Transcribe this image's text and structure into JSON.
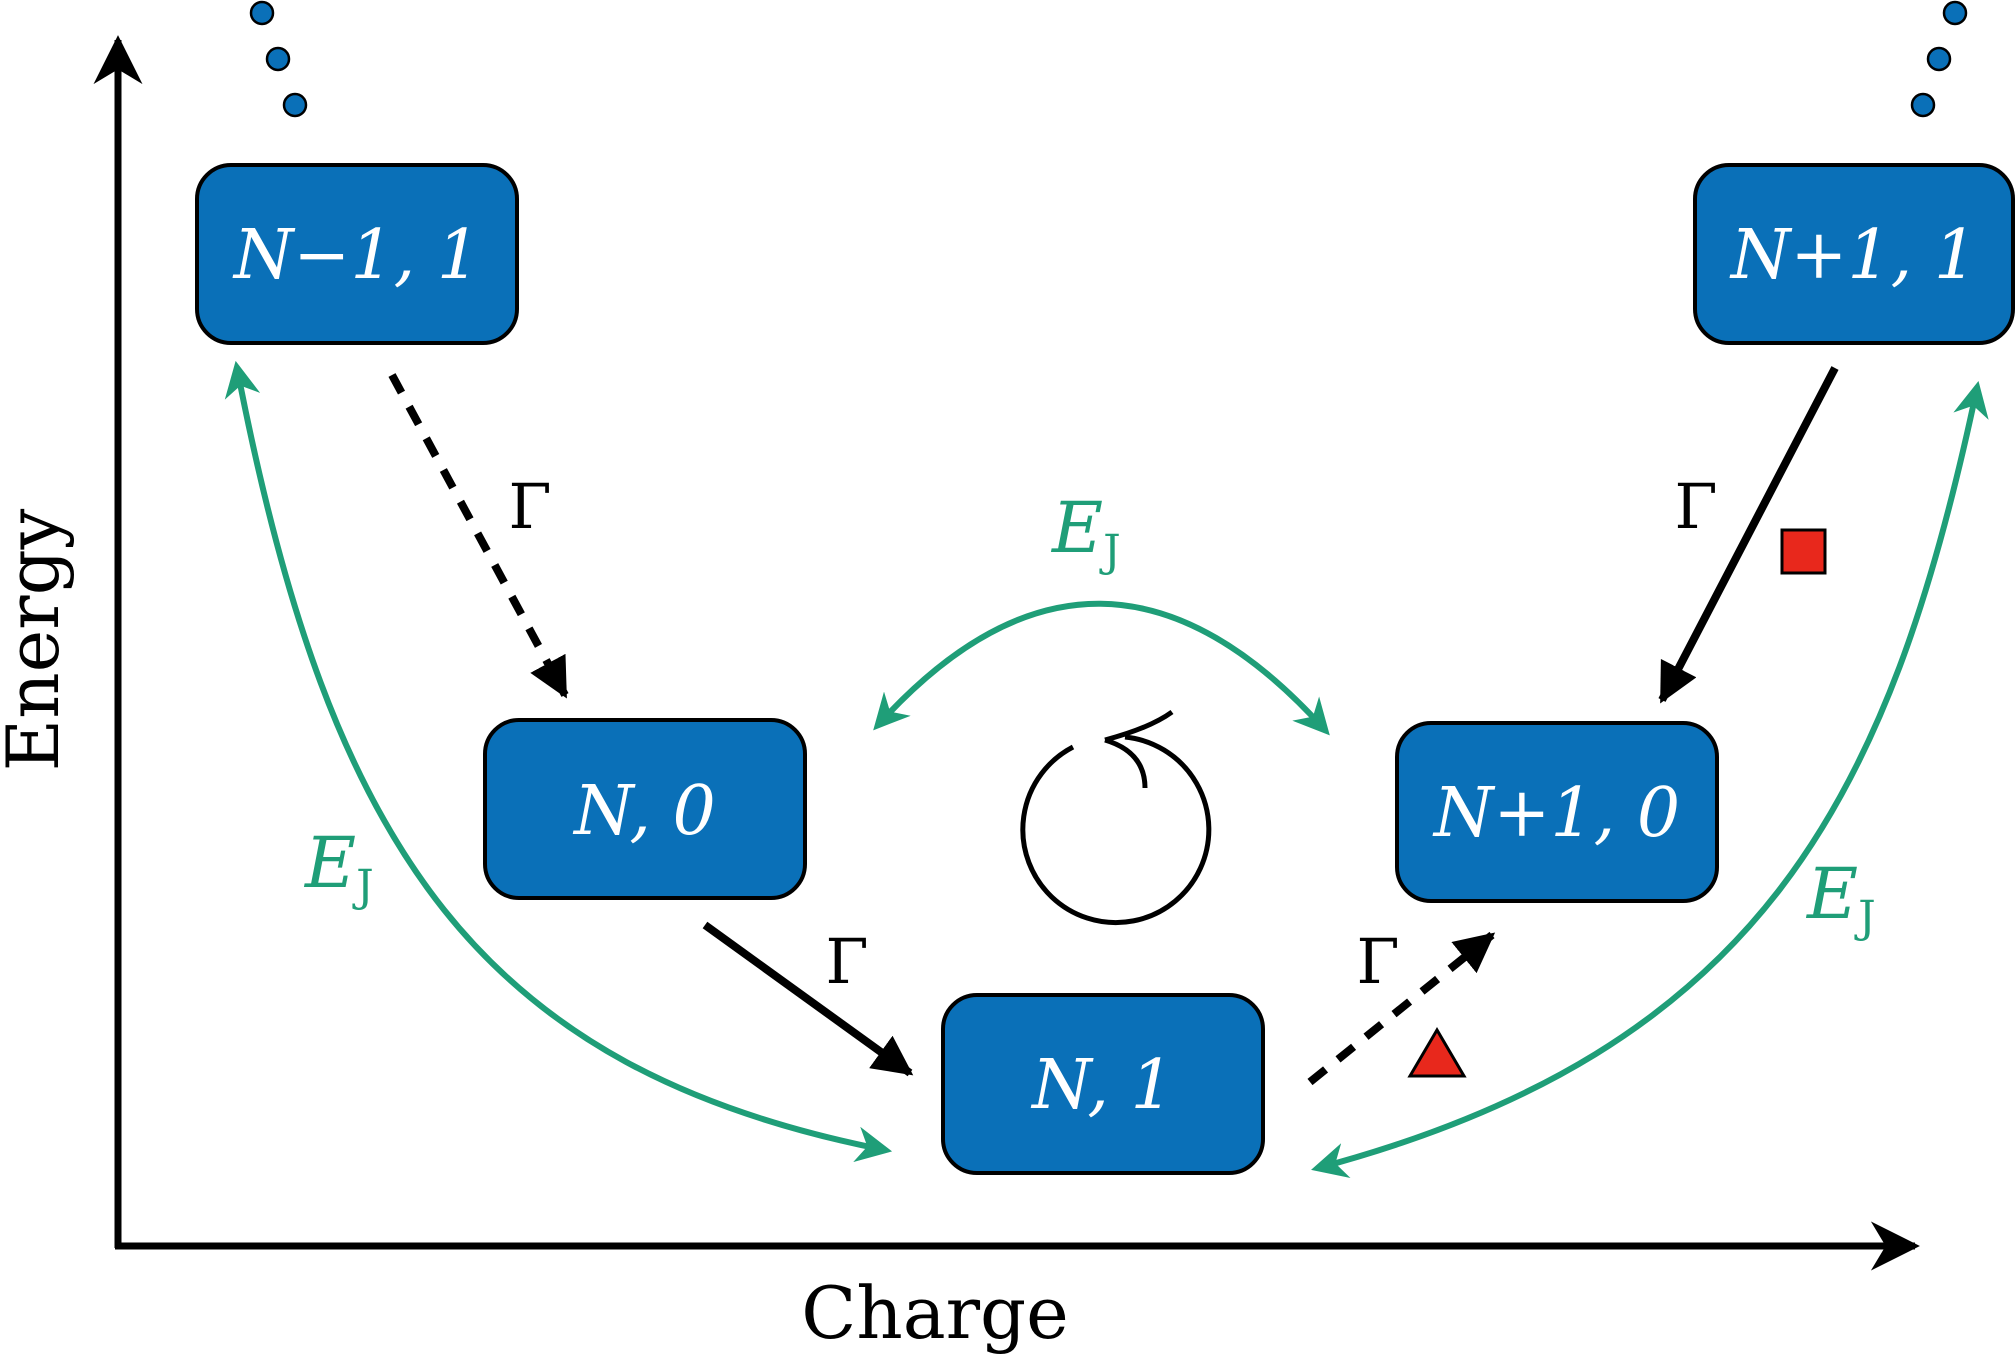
{
  "colors": {
    "box_fill": "#0a70b8",
    "coupling": "#1f9e78",
    "marker": "#e8281c",
    "dots": "#0a70b8"
  },
  "axes": {
    "x_label": "Charge",
    "y_label": "Energy"
  },
  "states": [
    {
      "id": "n-minus-1-1",
      "label": "N−1, 1"
    },
    {
      "id": "n-0",
      "label": "N, 0"
    },
    {
      "id": "n-1",
      "label": "N, 1"
    },
    {
      "id": "n-plus-1-0",
      "label": "N+1, 0"
    },
    {
      "id": "n-plus-1-1",
      "label": "N+1, 1"
    }
  ],
  "rates": {
    "gamma": "Γ"
  },
  "coupling": {
    "symbol": "E",
    "subscript": "J"
  },
  "icons": [
    "cycle-icon",
    "triangle-marker",
    "square-marker",
    "ellipsis-dots"
  ]
}
